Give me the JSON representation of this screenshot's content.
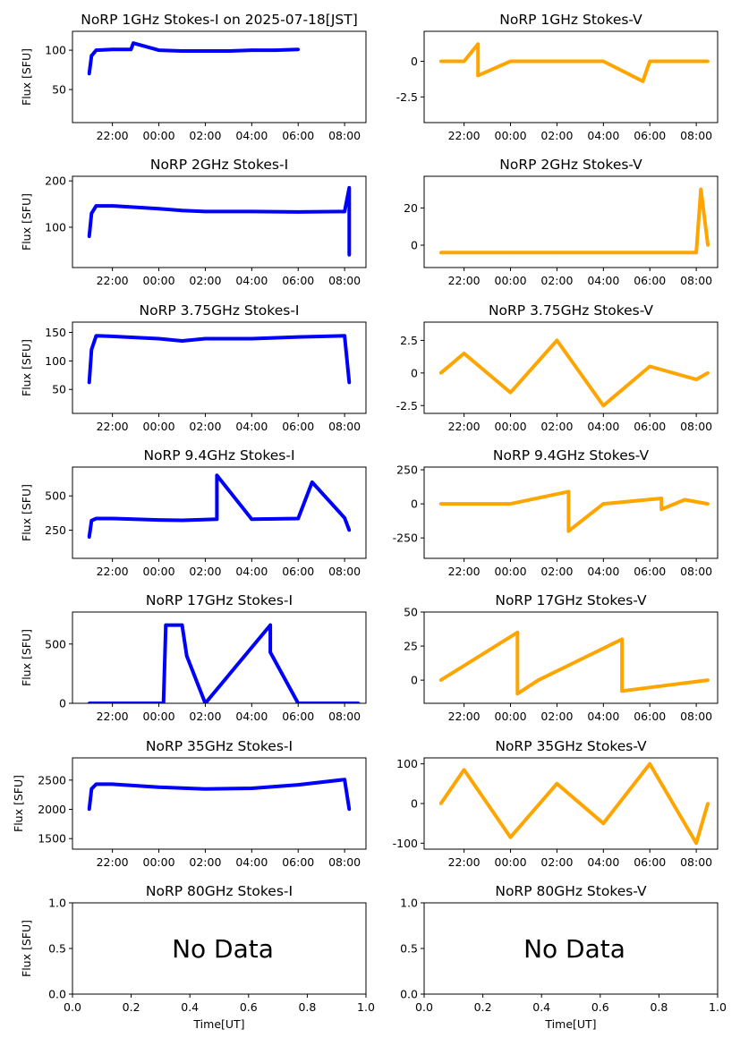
{
  "figure": {
    "ylabel": "Flux [SFU]",
    "xlabel": "Time[UT]",
    "no_data_text": "No Data",
    "colors": {
      "stokes_i": "#0000ff",
      "stokes_v": "#ffa500"
    },
    "time_ticks": [
      "22:00",
      "00:00",
      "02:00",
      "04:00",
      "06:00",
      "08:00"
    ]
  },
  "chart_data": [
    {
      "id": "i1",
      "type": "scatter",
      "title": "NoRP 1GHz Stokes-I on 2025-07-18[JST]",
      "xlim_hours": [
        20.28,
        32.92
      ],
      "ylim": [
        8,
        124
      ],
      "yticks": [
        50,
        100
      ],
      "series": [
        {
          "color": "#0000ff",
          "values": [
            {
              "x": 21.0,
              "y": 70
            },
            {
              "x": 21.1,
              "y": 93
            },
            {
              "x": 21.3,
              "y": 100
            },
            {
              "x": 22.0,
              "y": 101
            },
            {
              "x": 22.8,
              "y": 101
            },
            {
              "x": 22.9,
              "y": 109
            },
            {
              "x": 24.0,
              "y": 100
            },
            {
              "x": 25.0,
              "y": 99
            },
            {
              "x": 26.0,
              "y": 99
            },
            {
              "x": 27.0,
              "y": 99
            },
            {
              "x": 28.0,
              "y": 100
            },
            {
              "x": 29.0,
              "y": 100
            },
            {
              "x": 30.0,
              "y": 101
            }
          ]
        }
      ]
    },
    {
      "id": "v1",
      "type": "scatter",
      "title": "NoRP 1GHz Stokes-V",
      "xlim_hours": [
        20.28,
        32.92
      ],
      "ylim": [
        -4.3,
        2.1
      ],
      "yticks": [
        -2.5,
        0.0
      ],
      "series": [
        {
          "color": "#ffa500",
          "values": [
            {
              "x": 21.0,
              "y": 0.0
            },
            {
              "x": 22.0,
              "y": 0.0
            },
            {
              "x": 22.6,
              "y": 1.2
            },
            {
              "x": 22.6,
              "y": -1.0
            },
            {
              "x": 24.0,
              "y": 0.0
            },
            {
              "x": 26.0,
              "y": 0.0
            },
            {
              "x": 28.0,
              "y": 0.0
            },
            {
              "x": 29.7,
              "y": -1.4
            },
            {
              "x": 30.0,
              "y": 0.0
            },
            {
              "x": 32.5,
              "y": 0.0
            }
          ]
        }
      ]
    },
    {
      "id": "i2",
      "type": "scatter",
      "title": "NoRP 2GHz Stokes-I",
      "xlim_hours": [
        20.28,
        32.92
      ],
      "ylim": [
        13,
        210
      ],
      "yticks": [
        100,
        200
      ],
      "series": [
        {
          "color": "#0000ff",
          "values": [
            {
              "x": 21.0,
              "y": 80
            },
            {
              "x": 21.1,
              "y": 130
            },
            {
              "x": 21.3,
              "y": 146
            },
            {
              "x": 22.0,
              "y": 146
            },
            {
              "x": 24.0,
              "y": 140
            },
            {
              "x": 25.0,
              "y": 136
            },
            {
              "x": 26.0,
              "y": 134
            },
            {
              "x": 28.0,
              "y": 134
            },
            {
              "x": 30.0,
              "y": 133
            },
            {
              "x": 32.0,
              "y": 134
            },
            {
              "x": 32.2,
              "y": 185
            },
            {
              "x": 32.2,
              "y": 40
            }
          ]
        }
      ]
    },
    {
      "id": "v2",
      "type": "scatter",
      "title": "NoRP 2GHz Stokes-V",
      "xlim_hours": [
        20.28,
        32.92
      ],
      "ylim": [
        -12,
        37
      ],
      "yticks": [
        0,
        20
      ],
      "series": [
        {
          "color": "#ffa500",
          "values": [
            {
              "x": 21.0,
              "y": -4
            },
            {
              "x": 22.0,
              "y": -4
            },
            {
              "x": 24.0,
              "y": -4
            },
            {
              "x": 26.0,
              "y": -4
            },
            {
              "x": 28.0,
              "y": -4
            },
            {
              "x": 30.0,
              "y": -4
            },
            {
              "x": 32.0,
              "y": -4
            },
            {
              "x": 32.2,
              "y": 30
            },
            {
              "x": 32.5,
              "y": 0
            }
          ]
        }
      ]
    },
    {
      "id": "i3",
      "type": "scatter",
      "title": "NoRP 3.75GHz Stokes-I",
      "xlim_hours": [
        20.28,
        32.92
      ],
      "ylim": [
        8,
        168
      ],
      "yticks": [
        50,
        100,
        150
      ],
      "series": [
        {
          "color": "#0000ff",
          "values": [
            {
              "x": 21.0,
              "y": 62
            },
            {
              "x": 21.1,
              "y": 120
            },
            {
              "x": 21.3,
              "y": 144
            },
            {
              "x": 22.0,
              "y": 143
            },
            {
              "x": 24.0,
              "y": 139
            },
            {
              "x": 25.0,
              "y": 135
            },
            {
              "x": 26.0,
              "y": 139
            },
            {
              "x": 28.0,
              "y": 139
            },
            {
              "x": 30.0,
              "y": 142
            },
            {
              "x": 32.0,
              "y": 144
            },
            {
              "x": 32.2,
              "y": 62
            }
          ]
        }
      ]
    },
    {
      "id": "v3",
      "type": "scatter",
      "title": "NoRP 3.75GHz Stokes-V",
      "xlim_hours": [
        20.28,
        32.92
      ],
      "ylim": [
        -3.1,
        3.9
      ],
      "yticks": [
        -2.5,
        0.0,
        2.5
      ],
      "series": [
        {
          "color": "#ffa500",
          "values": [
            {
              "x": 21.0,
              "y": 0.0
            },
            {
              "x": 22.0,
              "y": 1.5
            },
            {
              "x": 24.0,
              "y": -1.5
            },
            {
              "x": 26.0,
              "y": 2.5
            },
            {
              "x": 28.0,
              "y": -2.5
            },
            {
              "x": 30.0,
              "y": 0.5
            },
            {
              "x": 32.0,
              "y": -0.5
            },
            {
              "x": 32.5,
              "y": 0.0
            }
          ]
        }
      ]
    },
    {
      "id": "i4",
      "type": "scatter",
      "title": "NoRP 9.4GHz Stokes-I",
      "xlim_hours": [
        20.28,
        32.92
      ],
      "ylim": [
        45,
        710
      ],
      "yticks": [
        250,
        500
      ],
      "series": [
        {
          "color": "#0000ff",
          "values": [
            {
              "x": 21.0,
              "y": 200
            },
            {
              "x": 21.1,
              "y": 320
            },
            {
              "x": 21.3,
              "y": 335
            },
            {
              "x": 22.0,
              "y": 335
            },
            {
              "x": 24.0,
              "y": 325
            },
            {
              "x": 25.0,
              "y": 322
            },
            {
              "x": 26.5,
              "y": 330
            },
            {
              "x": 26.5,
              "y": 650
            },
            {
              "x": 28.0,
              "y": 330
            },
            {
              "x": 30.0,
              "y": 335
            },
            {
              "x": 30.6,
              "y": 600
            },
            {
              "x": 32.0,
              "y": 340
            },
            {
              "x": 32.2,
              "y": 250
            }
          ]
        }
      ]
    },
    {
      "id": "v4",
      "type": "scatter",
      "title": "NoRP 9.4GHz Stokes-V",
      "xlim_hours": [
        20.28,
        32.92
      ],
      "ylim": [
        -400,
        270
      ],
      "yticks": [
        -250,
        0,
        250
      ],
      "series": [
        {
          "color": "#ffa500",
          "values": [
            {
              "x": 21.0,
              "y": 0
            },
            {
              "x": 24.0,
              "y": 0
            },
            {
              "x": 26.5,
              "y": 90
            },
            {
              "x": 26.5,
              "y": -200
            },
            {
              "x": 28.0,
              "y": 0
            },
            {
              "x": 30.5,
              "y": 40
            },
            {
              "x": 30.5,
              "y": -40
            },
            {
              "x": 31.5,
              "y": 30
            },
            {
              "x": 32.5,
              "y": 0
            }
          ]
        }
      ]
    },
    {
      "id": "i5",
      "type": "scatter",
      "title": "NoRP 17GHz Stokes-I",
      "xlim_hours": [
        20.28,
        32.92
      ],
      "ylim": [
        0,
        770
      ],
      "yticks": [
        0,
        500
      ],
      "series": [
        {
          "color": "#0000ff",
          "values": [
            {
              "x": 21.0,
              "y": 0
            },
            {
              "x": 24.2,
              "y": 0
            },
            {
              "x": 24.3,
              "y": 660
            },
            {
              "x": 25.0,
              "y": 660
            },
            {
              "x": 25.2,
              "y": 400
            },
            {
              "x": 26.0,
              "y": 0
            },
            {
              "x": 28.8,
              "y": 660
            },
            {
              "x": 28.8,
              "y": 430
            },
            {
              "x": 30.0,
              "y": 0
            },
            {
              "x": 32.6,
              "y": 0
            }
          ]
        }
      ]
    },
    {
      "id": "v5",
      "type": "scatter",
      "title": "NoRP 17GHz Stokes-V",
      "xlim_hours": [
        20.28,
        32.92
      ],
      "ylim": [
        -17,
        50
      ],
      "yticks": [
        0,
        25,
        50
      ],
      "series": [
        {
          "color": "#ffa500",
          "values": [
            {
              "x": 21.0,
              "y": 0
            },
            {
              "x": 24.3,
              "y": 35
            },
            {
              "x": 24.3,
              "y": -10
            },
            {
              "x": 25.2,
              "y": 0
            },
            {
              "x": 28.8,
              "y": 30
            },
            {
              "x": 28.8,
              "y": -8
            },
            {
              "x": 32.5,
              "y": 0
            }
          ]
        }
      ]
    },
    {
      "id": "i6",
      "type": "scatter",
      "title": "NoRP 35GHz Stokes-I",
      "xlim_hours": [
        20.28,
        32.92
      ],
      "ylim": [
        1320,
        2880
      ],
      "yticks": [
        1500,
        2000,
        2500
      ],
      "series": [
        {
          "color": "#0000ff",
          "values": [
            {
              "x": 21.0,
              "y": 2000
            },
            {
              "x": 21.1,
              "y": 2350
            },
            {
              "x": 21.3,
              "y": 2430
            },
            {
              "x": 22.0,
              "y": 2430
            },
            {
              "x": 24.0,
              "y": 2380
            },
            {
              "x": 26.0,
              "y": 2350
            },
            {
              "x": 28.0,
              "y": 2360
            },
            {
              "x": 30.0,
              "y": 2420
            },
            {
              "x": 32.0,
              "y": 2510
            },
            {
              "x": 32.2,
              "y": 2000
            }
          ]
        }
      ]
    },
    {
      "id": "v6",
      "type": "scatter",
      "title": "NoRP 35GHz Stokes-V",
      "xlim_hours": [
        20.28,
        32.92
      ],
      "ylim": [
        -115,
        115
      ],
      "yticks": [
        -100,
        0,
        100
      ],
      "series": [
        {
          "color": "#ffa500",
          "values": [
            {
              "x": 21.0,
              "y": 0
            },
            {
              "x": 22.0,
              "y": 85
            },
            {
              "x": 24.0,
              "y": -85
            },
            {
              "x": 26.0,
              "y": 50
            },
            {
              "x": 28.0,
              "y": -50
            },
            {
              "x": 30.0,
              "y": 100
            },
            {
              "x": 32.0,
              "y": -100
            },
            {
              "x": 32.5,
              "y": 0
            }
          ]
        }
      ]
    },
    {
      "id": "i7",
      "type": "scatter",
      "title": "NoRP 80GHz Stokes-I",
      "xlim": [
        0,
        1
      ],
      "ylim": [
        0,
        1
      ],
      "no_data": true,
      "xticks": [
        "0.0",
        "0.2",
        "0.4",
        "0.6",
        "0.8",
        "1.0"
      ],
      "yticks": [
        "0.0",
        "0.5",
        "1.0"
      ],
      "series": []
    },
    {
      "id": "v7",
      "type": "scatter",
      "title": "NoRP 80GHz Stokes-V",
      "xlim": [
        0,
        1
      ],
      "ylim": [
        0,
        1
      ],
      "no_data": true,
      "xticks": [
        "0.0",
        "0.2",
        "0.4",
        "0.6",
        "0.8",
        "1.0"
      ],
      "yticks": [
        "0.0",
        "0.5",
        "1.0"
      ],
      "series": []
    }
  ]
}
